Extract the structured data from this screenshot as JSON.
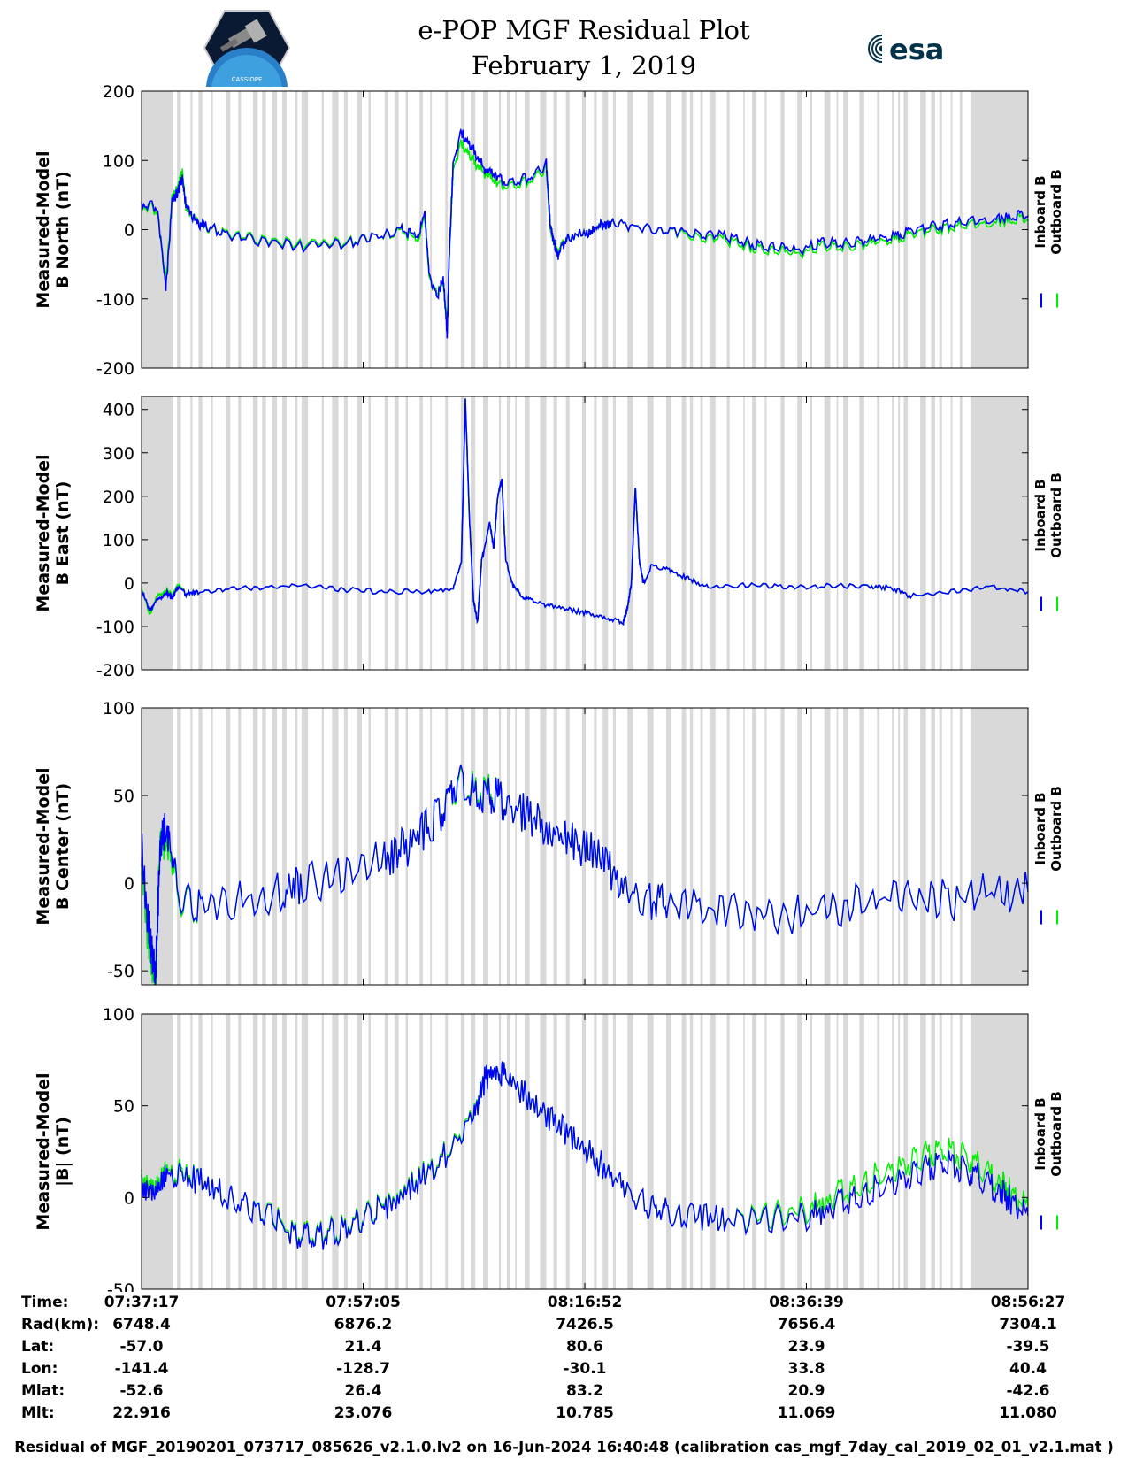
{
  "title_line1": "e-POP MGF Residual Plot",
  "title_line2": "February 1, 2019",
  "logos": {
    "left": "cassiope-satellite-logo",
    "right_text": "esa"
  },
  "colors": {
    "inboard": "#0000ff",
    "outboard": "#00ee00",
    "shade": "#d9d9d9"
  },
  "chart_data": [
    {
      "type": "line",
      "ylabel_line1": "Measured-Model",
      "ylabel_line2": "B North (nT)",
      "ylim": [
        -200,
        200
      ],
      "yticks": [
        "200",
        "100",
        "0",
        "-100",
        "-200"
      ],
      "ytick_values": [
        200,
        100,
        0,
        -100,
        -200
      ],
      "x": [
        0,
        40,
        60,
        75,
        90,
        100,
        110,
        135,
        160,
        200,
        280,
        400,
        500,
        580,
        640,
        680,
        700,
        710,
        730,
        745,
        755,
        760,
        770,
        790,
        820,
        850,
        880,
        900,
        960,
        1000,
        1010,
        1020,
        1030,
        1050,
        1100,
        1130,
        1160,
        1220,
        1300,
        1380,
        1440,
        1500,
        1560,
        1620,
        1680,
        1740,
        1800,
        1860,
        1900,
        1960,
        2020,
        2100,
        2150,
        2190
      ],
      "series": [
        {
          "name": "Inboard B",
          "values": [
            40,
            30,
            -90,
            40,
            55,
            75,
            35,
            10,
            5,
            -5,
            -15,
            -25,
            -20,
            -10,
            0,
            -10,
            20,
            -60,
            -100,
            -70,
            -150,
            -40,
            100,
            140,
            115,
            85,
            75,
            70,
            75,
            95,
            5,
            -20,
            -40,
            -10,
            -5,
            5,
            10,
            5,
            0,
            -5,
            -10,
            -20,
            -25,
            -30,
            -20,
            -20,
            -15,
            -10,
            0,
            5,
            10,
            15,
            20,
            20
          ]
        },
        {
          "name": "Outboard B",
          "values": [
            38,
            25,
            -80,
            45,
            60,
            85,
            30,
            12,
            3,
            -3,
            -13,
            -22,
            -18,
            -10,
            -2,
            -15,
            15,
            -65,
            -95,
            -75,
            -140,
            -45,
            90,
            125,
            100,
            80,
            65,
            65,
            70,
            90,
            0,
            -20,
            -35,
            -10,
            -5,
            5,
            10,
            5,
            0,
            -10,
            -15,
            -25,
            -30,
            -35,
            -25,
            -25,
            -20,
            -15,
            -5,
            0,
            5,
            10,
            15,
            15
          ]
        }
      ]
    },
    {
      "type": "line",
      "ylabel_line1": "Measured-Model",
      "ylabel_line2": "B East (nT)",
      "ylim": [
        -200,
        430
      ],
      "yticks": [
        "400",
        "300",
        "200",
        "100",
        "0",
        "-100",
        "-200"
      ],
      "ytick_values": [
        400,
        300,
        200,
        100,
        0,
        -100,
        -200
      ],
      "x": [
        0,
        20,
        40,
        60,
        75,
        90,
        110,
        140,
        200,
        300,
        400,
        500,
        600,
        700,
        770,
        790,
        800,
        810,
        820,
        830,
        840,
        860,
        870,
        880,
        890,
        900,
        920,
        940,
        960,
        1000,
        1050,
        1100,
        1150,
        1190,
        1200,
        1210,
        1220,
        1230,
        1240,
        1260,
        1300,
        1350,
        1400,
        1500,
        1600,
        1700,
        1800,
        1850,
        1900,
        2000,
        2100,
        2190
      ],
      "series": [
        {
          "name": "Inboard B",
          "values": [
            -20,
            -60,
            -40,
            -20,
            -35,
            -10,
            -25,
            -20,
            -15,
            -10,
            -5,
            -15,
            -20,
            -20,
            -15,
            50,
            420,
            150,
            -40,
            -90,
            50,
            140,
            80,
            200,
            240,
            50,
            -10,
            -30,
            -40,
            -50,
            -60,
            -70,
            -80,
            -90,
            -60,
            0,
            220,
            50,
            0,
            40,
            30,
            10,
            -10,
            -5,
            -10,
            -5,
            -10,
            -10,
            -30,
            -20,
            -10,
            -20
          ]
        },
        {
          "name": "Outboard B",
          "values": [
            -15,
            -70,
            -30,
            -15,
            -30,
            -5,
            -25,
            -20,
            -15,
            -10,
            -5,
            -15,
            -20,
            -20,
            -15,
            50,
            420,
            150,
            -40,
            -90,
            50,
            140,
            80,
            200,
            240,
            50,
            -10,
            -30,
            -40,
            -50,
            -60,
            -70,
            -80,
            -90,
            -60,
            0,
            220,
            50,
            0,
            40,
            30,
            10,
            -10,
            -5,
            -10,
            -5,
            -10,
            -10,
            -30,
            -20,
            -10,
            -20
          ]
        }
      ]
    },
    {
      "type": "line",
      "ylabel_line1": "Measured-Model",
      "ylabel_line2": "B Center (nT)",
      "ylim": [
        -58,
        100
      ],
      "yticks": [
        "100",
        "50",
        "0",
        "-50"
      ],
      "ytick_values": [
        100,
        50,
        0,
        -50
      ],
      "x": [
        0,
        15,
        25,
        35,
        45,
        55,
        70,
        90,
        150,
        250,
        350,
        400,
        500,
        600,
        650,
        700,
        740,
        760,
        780,
        820,
        860,
        880,
        900,
        950,
        1000,
        1050,
        1100,
        1150,
        1200,
        1260,
        1300,
        1400,
        1500,
        1600,
        1700,
        1800,
        1900,
        2000,
        2100,
        2190
      ],
      "series": [
        {
          "name": "Inboard B",
          "values": [
            20,
            -20,
            -40,
            -50,
            15,
            30,
            25,
            -10,
            -10,
            -10,
            -5,
            0,
            5,
            15,
            20,
            30,
            40,
            50,
            60,
            50,
            50,
            48,
            45,
            40,
            30,
            25,
            20,
            10,
            -5,
            -10,
            -12,
            -15,
            -15,
            -18,
            -15,
            -10,
            -8,
            -10,
            -5,
            -5
          ]
        },
        {
          "name": "Outboard B",
          "values": [
            15,
            -30,
            -45,
            -55,
            20,
            25,
            20,
            -12,
            -10,
            -10,
            -5,
            0,
            5,
            15,
            20,
            30,
            40,
            50,
            58,
            52,
            52,
            48,
            45,
            40,
            30,
            25,
            20,
            10,
            -5,
            -10,
            -12,
            -15,
            -15,
            -18,
            -15,
            -10,
            -8,
            -10,
            -5,
            -5
          ]
        }
      ]
    },
    {
      "type": "line",
      "ylabel_line1": "Measured-Model",
      "ylabel_line2": "|B| (nT)",
      "ylim": [
        -50,
        100
      ],
      "yticks": [
        "100",
        "50",
        "0",
        "-50"
      ],
      "ytick_values": [
        100,
        50,
        0,
        -50
      ],
      "x": [
        0,
        30,
        60,
        100,
        150,
        200,
        260,
        320,
        380,
        420,
        460,
        520,
        560,
        600,
        650,
        700,
        760,
        820,
        850,
        880,
        900,
        950,
        1000,
        1050,
        1100,
        1150,
        1200,
        1260,
        1300,
        1380,
        1450,
        1550,
        1650,
        1700,
        1760,
        1820,
        1880,
        1920,
        1960,
        2000,
        2040,
        2080,
        2120,
        2150,
        2190
      ],
      "series": [
        {
          "name": "Inboard B",
          "values": [
            5,
            5,
            10,
            12,
            8,
            3,
            -5,
            -12,
            -20,
            -22,
            -20,
            -15,
            -10,
            -5,
            3,
            12,
            25,
            45,
            65,
            70,
            65,
            55,
            45,
            35,
            25,
            15,
            2,
            -5,
            -8,
            -10,
            -12,
            -12,
            -10,
            -5,
            0,
            5,
            10,
            14,
            18,
            18,
            15,
            10,
            3,
            -2,
            -10
          ]
        },
        {
          "name": "Outboard B",
          "values": [
            8,
            8,
            12,
            14,
            8,
            3,
            -5,
            -11,
            -19,
            -21,
            -19,
            -14,
            -9,
            -4,
            4,
            13,
            26,
            46,
            65,
            70,
            65,
            55,
            45,
            35,
            25,
            15,
            2,
            -5,
            -8,
            -10,
            -12,
            -10,
            -6,
            0,
            6,
            12,
            17,
            22,
            25,
            25,
            22,
            16,
            8,
            2,
            -5
          ]
        }
      ]
    }
  ],
  "legend": {
    "inboard_label": "Inboard B",
    "outboard_label": "Outboard B"
  },
  "info_table": {
    "labels": [
      "Time:",
      "Rad(km):",
      "Lat:",
      "Lon:",
      "Mlat:",
      "Mlt:"
    ],
    "columns": [
      [
        "07:37:17",
        "6748.4",
        "-57.0",
        "-141.4",
        "-52.6",
        "22.916"
      ],
      [
        "07:57:05",
        "6876.2",
        "21.4",
        "-128.7",
        "26.4",
        "23.076"
      ],
      [
        "08:16:52",
        "7426.5",
        "80.6",
        "-30.1",
        "83.2",
        "10.785"
      ],
      [
        "08:36:39",
        "7656.4",
        "23.9",
        "33.8",
        "20.9",
        "11.069"
      ],
      [
        "08:56:27",
        "7304.1",
        "-39.5",
        "40.4",
        "-42.6",
        "11.080"
      ]
    ]
  },
  "footer": "Residual of MGF_20190201_073717_085626_v2.1.0.lv2 on 16-Jun-2024 16:40:48 (calibration cas_mgf_7day_cal_2019_02_01_v2.1.mat )"
}
